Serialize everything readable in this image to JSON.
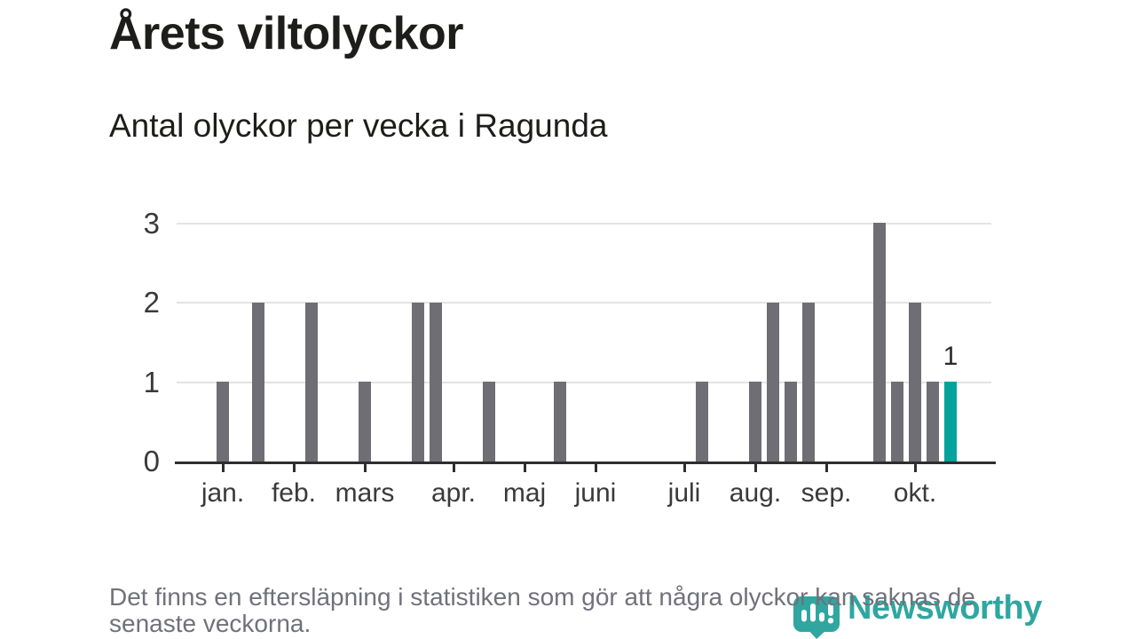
{
  "title": "Årets viltolyckor",
  "subtitle": "Antal olyckor per vecka i Ragunda",
  "footer": {
    "lines": [
      "Det finns en eftersläpning i statistiken som gör att några olyckor kan saknas de",
      "senaste veckorna."
    ]
  },
  "logo": {
    "name": "Newsworthy",
    "icon": "newsworthy-speech-bubble-bar-chart-icon"
  },
  "colors": {
    "bar": "#6e6e74",
    "highlight": "#00a49c",
    "grid": "#e3e3e3",
    "axis": "#2e2e2e",
    "tick_text": "#3a3a3a",
    "footer_text": "#71717b",
    "logo": "#2fa7a0",
    "title_text": "#1d1d1b"
  },
  "chart_data": {
    "type": "bar",
    "title": "Årets viltolyckor",
    "subtitle": "Antal olyckor per vecka i Ragunda",
    "xlabel": "",
    "ylabel": "Antal olyckor per vecka",
    "x_unit": "week",
    "categories": [
      1,
      2,
      3,
      4,
      5,
      6,
      7,
      8,
      9,
      10,
      11,
      12,
      13,
      14,
      15,
      16,
      17,
      18,
      19,
      20,
      21,
      22,
      23,
      24,
      25,
      26,
      27,
      28,
      29,
      30,
      31,
      32,
      33,
      34,
      35,
      36,
      37,
      38,
      39,
      40,
      41,
      42
    ],
    "values": [
      1,
      0,
      2,
      0,
      0,
      2,
      0,
      0,
      1,
      0,
      0,
      2,
      2,
      0,
      0,
      1,
      0,
      0,
      0,
      1,
      0,
      0,
      0,
      0,
      0,
      0,
      0,
      1,
      0,
      0,
      1,
      2,
      1,
      2,
      0,
      0,
      0,
      3,
      1,
      2,
      1,
      1
    ],
    "ylim": [
      0,
      3
    ],
    "y_ticks": [
      0,
      1,
      2,
      3
    ],
    "grid": true,
    "legend": "none",
    "months": [
      {
        "label": "jan.",
        "week": 1
      },
      {
        "label": "feb.",
        "week": 5
      },
      {
        "label": "mars",
        "week": 9
      },
      {
        "label": "apr.",
        "week": 14
      },
      {
        "label": "maj",
        "week": 18
      },
      {
        "label": "juni",
        "week": 22
      },
      {
        "label": "juli",
        "week": 27
      },
      {
        "label": "aug.",
        "week": 31
      },
      {
        "label": "sep.",
        "week": 35
      },
      {
        "label": "okt.",
        "week": 40
      }
    ],
    "highlighted_week": 42,
    "annotation": {
      "week": 42,
      "text": "1"
    }
  }
}
